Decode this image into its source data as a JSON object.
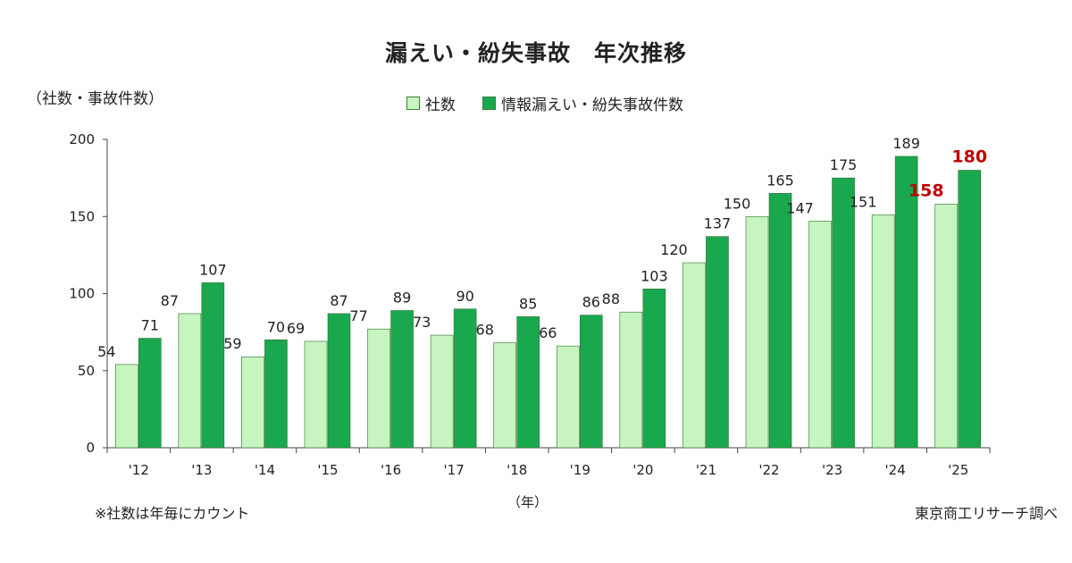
{
  "chart_data": {
    "type": "bar",
    "title": "漏えい・紛失事故　年次推移",
    "ylabel": "（社数・事故件数）",
    "xlabel": "（年）",
    "categories": [
      "'12",
      "'13",
      "'14",
      "'15",
      "'16",
      "'17",
      "'18",
      "'19",
      "'20",
      "'21",
      "'22",
      "'23",
      "'24",
      "'25"
    ],
    "series": [
      {
        "name": "社数",
        "color": "#c6f5c0",
        "values": [
          54,
          87,
          59,
          69,
          77,
          73,
          68,
          66,
          88,
          120,
          150,
          147,
          151,
          158
        ]
      },
      {
        "name": "情報漏えい・紛失事故件数",
        "color": "#1aa84e",
        "values": [
          71,
          107,
          70,
          87,
          89,
          90,
          85,
          86,
          103,
          137,
          165,
          175,
          189,
          180
        ]
      }
    ],
    "ylim": [
      0,
      200
    ],
    "yticks": [
      0,
      50,
      100,
      150,
      200
    ],
    "highlight": {
      "category": "'25",
      "label_color": "#c00000"
    },
    "grid": false,
    "legend_position": "top-center"
  },
  "footnote": "※社数は年毎にカウント",
  "source": "東京商工リサーチ調べ"
}
